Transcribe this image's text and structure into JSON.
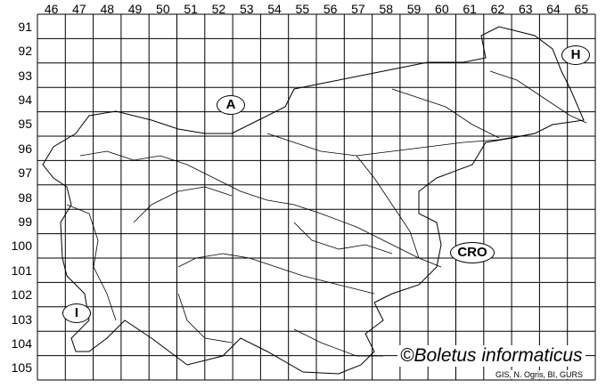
{
  "columns": [
    "46",
    "47",
    "48",
    "49",
    "50",
    "51",
    "52",
    "53",
    "54",
    "55",
    "56",
    "57",
    "58",
    "59",
    "60",
    "61",
    "62",
    "63",
    "64",
    "65"
  ],
  "rows": [
    "91",
    "92",
    "93",
    "94",
    "95",
    "96",
    "97",
    "98",
    "99",
    "100",
    "101",
    "102",
    "103",
    "104",
    "105"
  ],
  "country_tags": {
    "austria": "A",
    "hungary": "H",
    "croatia": "CRO",
    "italy": "I"
  },
  "copyright": "©Boletus informaticus",
  "credit": "GIS, N. Ogris, BI, GURS",
  "colors": {
    "lines": "#000000",
    "background": "#ffffff"
  }
}
